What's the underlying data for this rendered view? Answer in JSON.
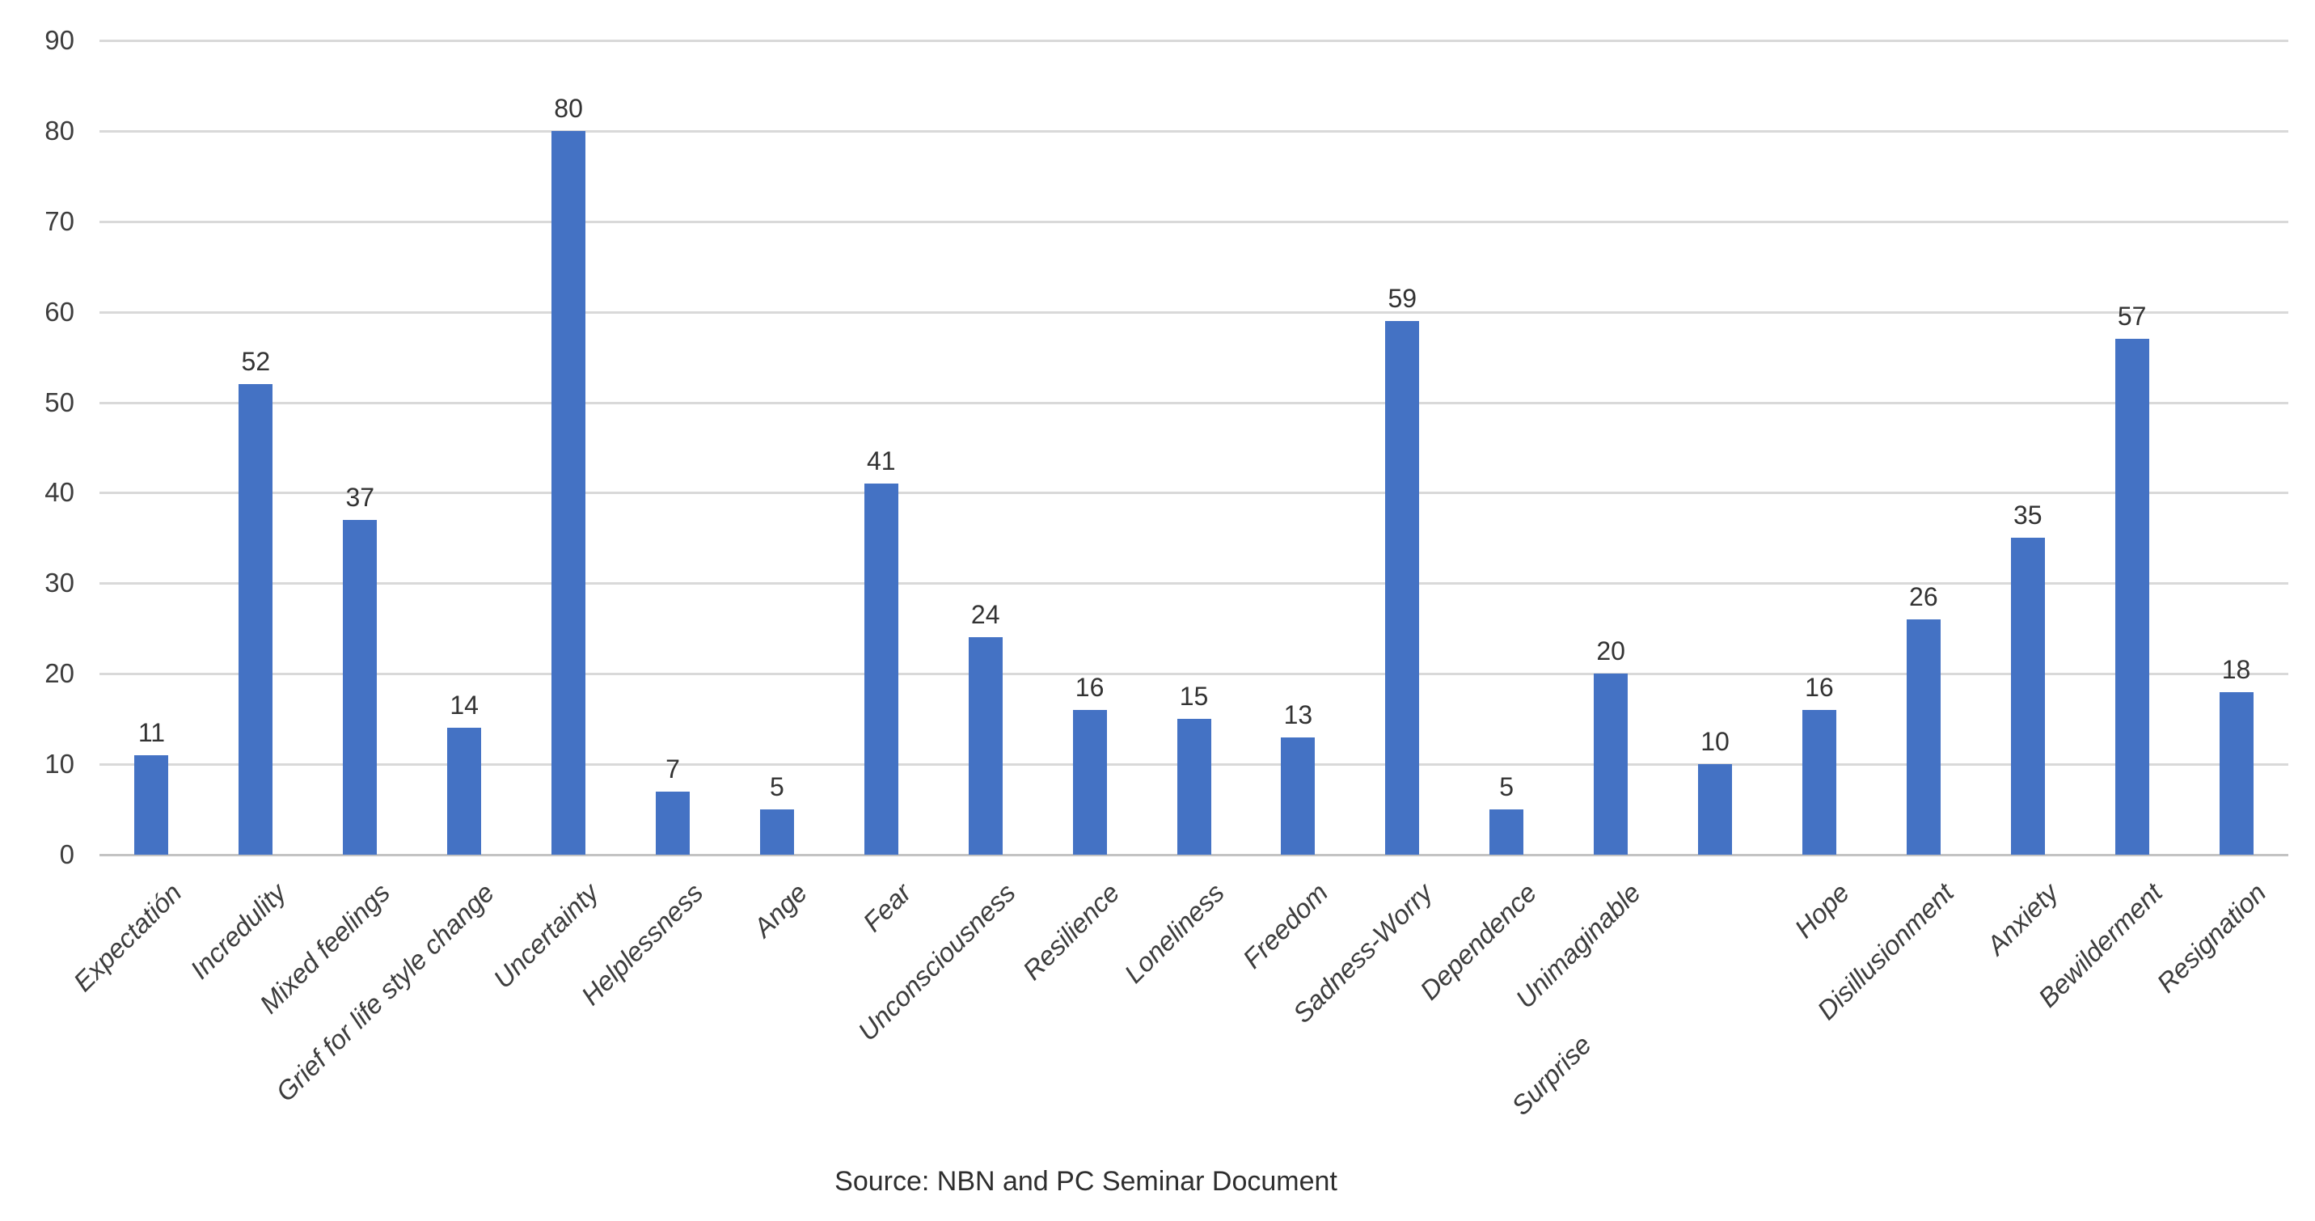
{
  "chart_data": {
    "type": "bar",
    "title": "",
    "categories": [
      "Expectatión",
      "Incredulity",
      "Mixed feelings",
      "Grief for life style change",
      "Uncertainty",
      "Helplessness",
      "Ange",
      "Fear",
      "Unconsciousness",
      "Resilience",
      "Loneliness",
      "Freedom",
      "Sadness-Worry",
      "Dependence",
      "Unimaginable",
      "Surprise",
      "Hope",
      "Disillusionment",
      "Anxiety",
      "Bewilderment",
      "Resignation"
    ],
    "values": [
      11,
      52,
      37,
      14,
      80,
      7,
      5,
      41,
      24,
      16,
      15,
      13,
      59,
      5,
      20,
      10,
      16,
      26,
      35,
      57,
      18
    ],
    "yticks": [
      0,
      10,
      20,
      30,
      40,
      50,
      60,
      70,
      80,
      90
    ],
    "ylim": [
      0,
      90
    ],
    "xlabel": "",
    "ylabel": "",
    "grid": true,
    "legend_position": "none",
    "value_labels_shown": true,
    "category_label_rotation_deg": 45,
    "bar_color": "#4472c4",
    "gridline_color": "#d9d9d9",
    "text_color": "#3d3d3d",
    "source_note": "Source: NBN and PC Seminar Document"
  }
}
